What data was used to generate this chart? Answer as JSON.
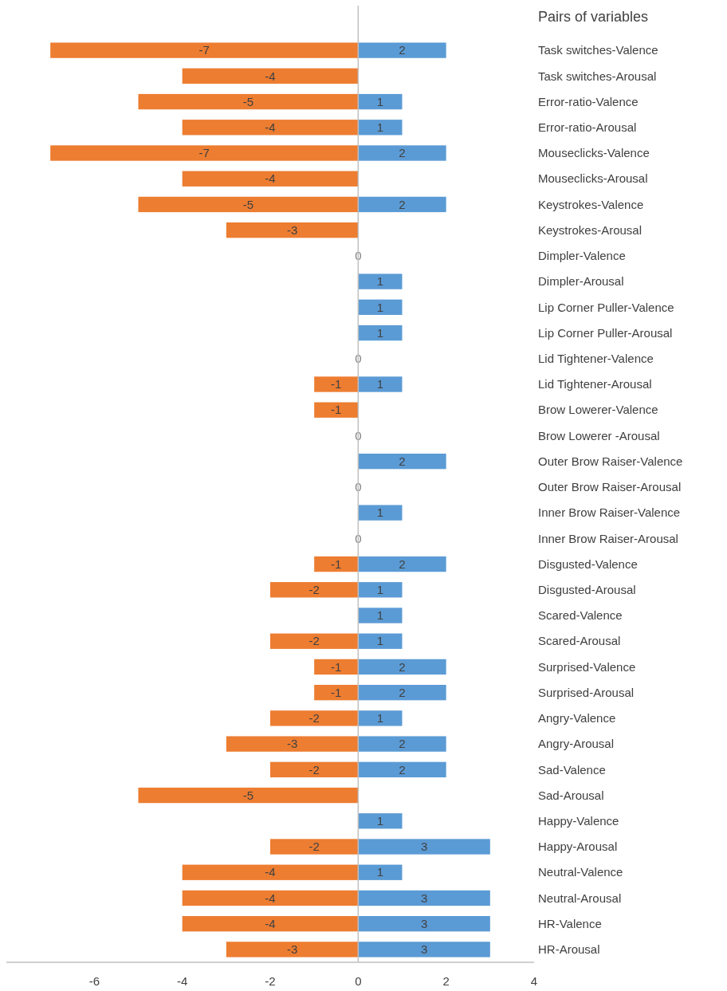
{
  "chart_data": {
    "type": "bar",
    "orientation": "horizontal",
    "stacked": true,
    "data_labels": true,
    "ylabel": "Pairs of variables",
    "categories": [
      "Task switches-Valence",
      "Task switches-Arousal",
      "Error-ratio-Valence",
      "Error-ratio-Arousal",
      "Mouseclicks-Valence",
      "Mouseclicks-Arousal",
      "Keystrokes-Valence",
      "Keystrokes-Arousal",
      "Dimpler-Valence",
      "Dimpler-Arousal",
      "Lip Corner Puller-Valence",
      "Lip Corner Puller-Arousal",
      "Lid Tightener-Valence",
      "Lid Tightener-Arousal",
      "Brow Lowerer-Valence",
      "Brow Lowerer -Arousal",
      "Outer Brow Raiser-Valence",
      "Outer Brow Raiser-Arousal",
      "Inner Brow Raiser-Valence",
      "Inner Brow Raiser-Arousal",
      "Disgusted-Valence",
      "Disgusted-Arousal",
      "Scared-Valence",
      "Scared-Arousal",
      "Surprised-Valence",
      "Surprised-Arousal",
      "Angry-Valence",
      "Angry-Arousal",
      "Sad-Valence",
      "Sad-Arousal",
      "Happy-Valence",
      "Happy-Arousal",
      "Neutral-Valence",
      "Neutral-Arousal",
      "HR-Valence",
      "HR-Arousal"
    ],
    "series": [
      {
        "color": "#ed7d31",
        "values": [
          -7,
          -4,
          -5,
          -4,
          -7,
          -4,
          -5,
          -3,
          0,
          null,
          null,
          null,
          0,
          -1,
          -1,
          0,
          null,
          0,
          null,
          0,
          -1,
          -2,
          null,
          -2,
          -1,
          -1,
          -2,
          -3,
          -2,
          -5,
          null,
          -2,
          -4,
          -4,
          -4,
          -3
        ]
      },
      {
        "color": "#5b9bd5",
        "values": [
          2,
          null,
          1,
          1,
          2,
          null,
          2,
          null,
          null,
          1,
          1,
          1,
          null,
          1,
          null,
          null,
          2,
          null,
          1,
          null,
          2,
          1,
          1,
          1,
          2,
          2,
          1,
          2,
          2,
          null,
          1,
          3,
          1,
          3,
          3,
          3
        ]
      }
    ],
    "xlim": [
      -8,
      4
    ],
    "xticks": [
      -6,
      -4,
      -2,
      0,
      2,
      4
    ]
  }
}
